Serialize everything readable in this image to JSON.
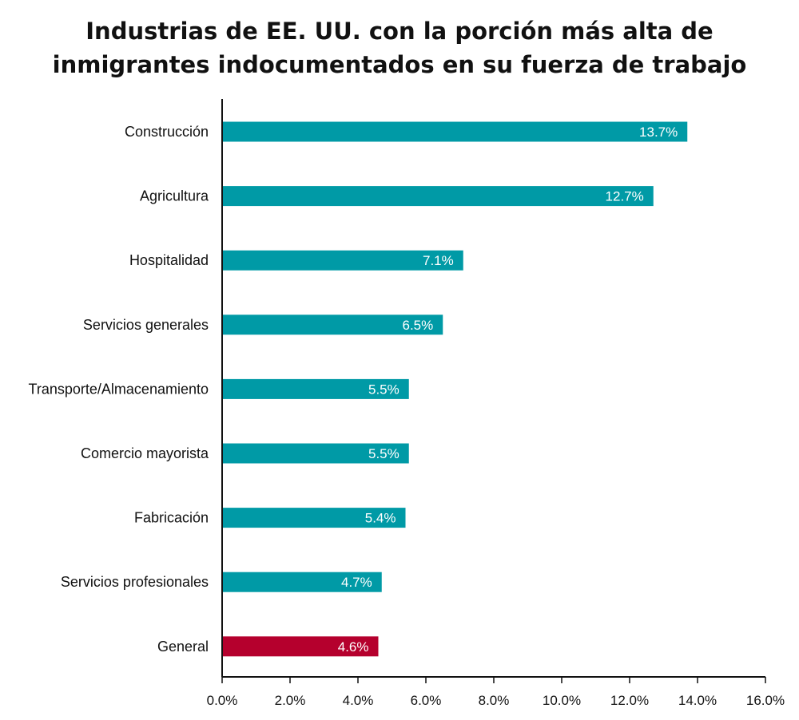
{
  "chart_data": {
    "type": "bar",
    "orientation": "horizontal",
    "title_lines": [
      "Industrias de EE. UU. con la porción más alta de",
      "inmigrantes indocumentados en su fuerza de trabajo"
    ],
    "categories": [
      "Construcción",
      "Agricultura",
      "Hospitalidad",
      "Servicios generales",
      "Transporte/Almacenamiento",
      "Comercio mayorista",
      "Fabricación",
      "Servicios profesionales",
      "General"
    ],
    "values": [
      13.7,
      12.7,
      7.1,
      6.5,
      5.5,
      5.5,
      5.4,
      4.7,
      4.6
    ],
    "value_labels": [
      "13.7%",
      "12.7%",
      "7.1%",
      "6.5%",
      "5.5%",
      "5.5%",
      "5.4%",
      "4.7%",
      "4.6%"
    ],
    "highlight_category": "General",
    "xlim": [
      0,
      16
    ],
    "x_ticks": [
      0,
      2,
      4,
      6,
      8,
      10,
      12,
      14,
      16
    ],
    "x_tick_labels": [
      "0.0%",
      "2.0%",
      "4.0%",
      "6.0%",
      "8.0%",
      "10.0%",
      "12.0%",
      "14.0%",
      "16.0%"
    ],
    "grid": false,
    "legend": "none",
    "colors": {
      "bar": "#009aa6",
      "highlight": "#b5002d",
      "axis": "#111111",
      "value_label": "#ffffff"
    }
  }
}
